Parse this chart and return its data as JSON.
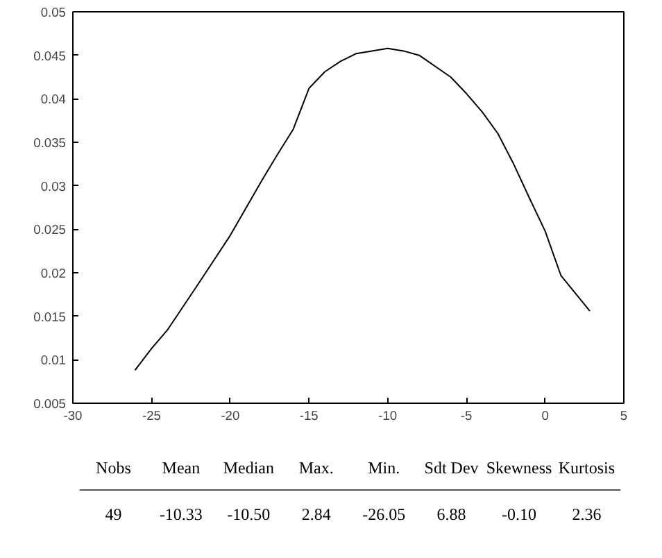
{
  "chart_data": {
    "type": "line",
    "color": "#000000",
    "x": [
      -26.05,
      -25,
      -24,
      -22,
      -20,
      -18,
      -17,
      -16,
      -15,
      -14,
      -13,
      -12,
      -10,
      -9,
      -8,
      -6,
      -5,
      -4,
      -3,
      -2,
      -1,
      0,
      1,
      2.84
    ],
    "values": [
      0.0088,
      0.0113,
      0.0134,
      0.0188,
      0.0243,
      0.0306,
      0.0336,
      0.0365,
      0.0412,
      0.0431,
      0.0443,
      0.0452,
      0.0458,
      0.0455,
      0.045,
      0.0425,
      0.0406,
      0.0385,
      0.036,
      0.0325,
      0.0286,
      0.0248,
      0.0197,
      0.0156
    ],
    "xlim": [
      -30,
      5
    ],
    "xticks": [
      -30,
      -25,
      -20,
      -15,
      -10,
      -5,
      0,
      5
    ],
    "ylim": [
      0.005,
      0.05
    ],
    "yticks": [
      0.005,
      0.01,
      0.015,
      0.02,
      0.025,
      0.03,
      0.035,
      0.04,
      0.045,
      0.05
    ],
    "grid": false,
    "marker": "none",
    "line_style": "solid",
    "annotations": [
      "Nobs",
      "Mean",
      "Median",
      "Max.",
      "Min.",
      "Sdt Dev",
      "Skewness",
      "Kurtosis",
      "49",
      "-10.33",
      "-10.50",
      "2.84",
      "-26.05",
      "6.88",
      "-0.10",
      "2.36"
    ]
  }
}
